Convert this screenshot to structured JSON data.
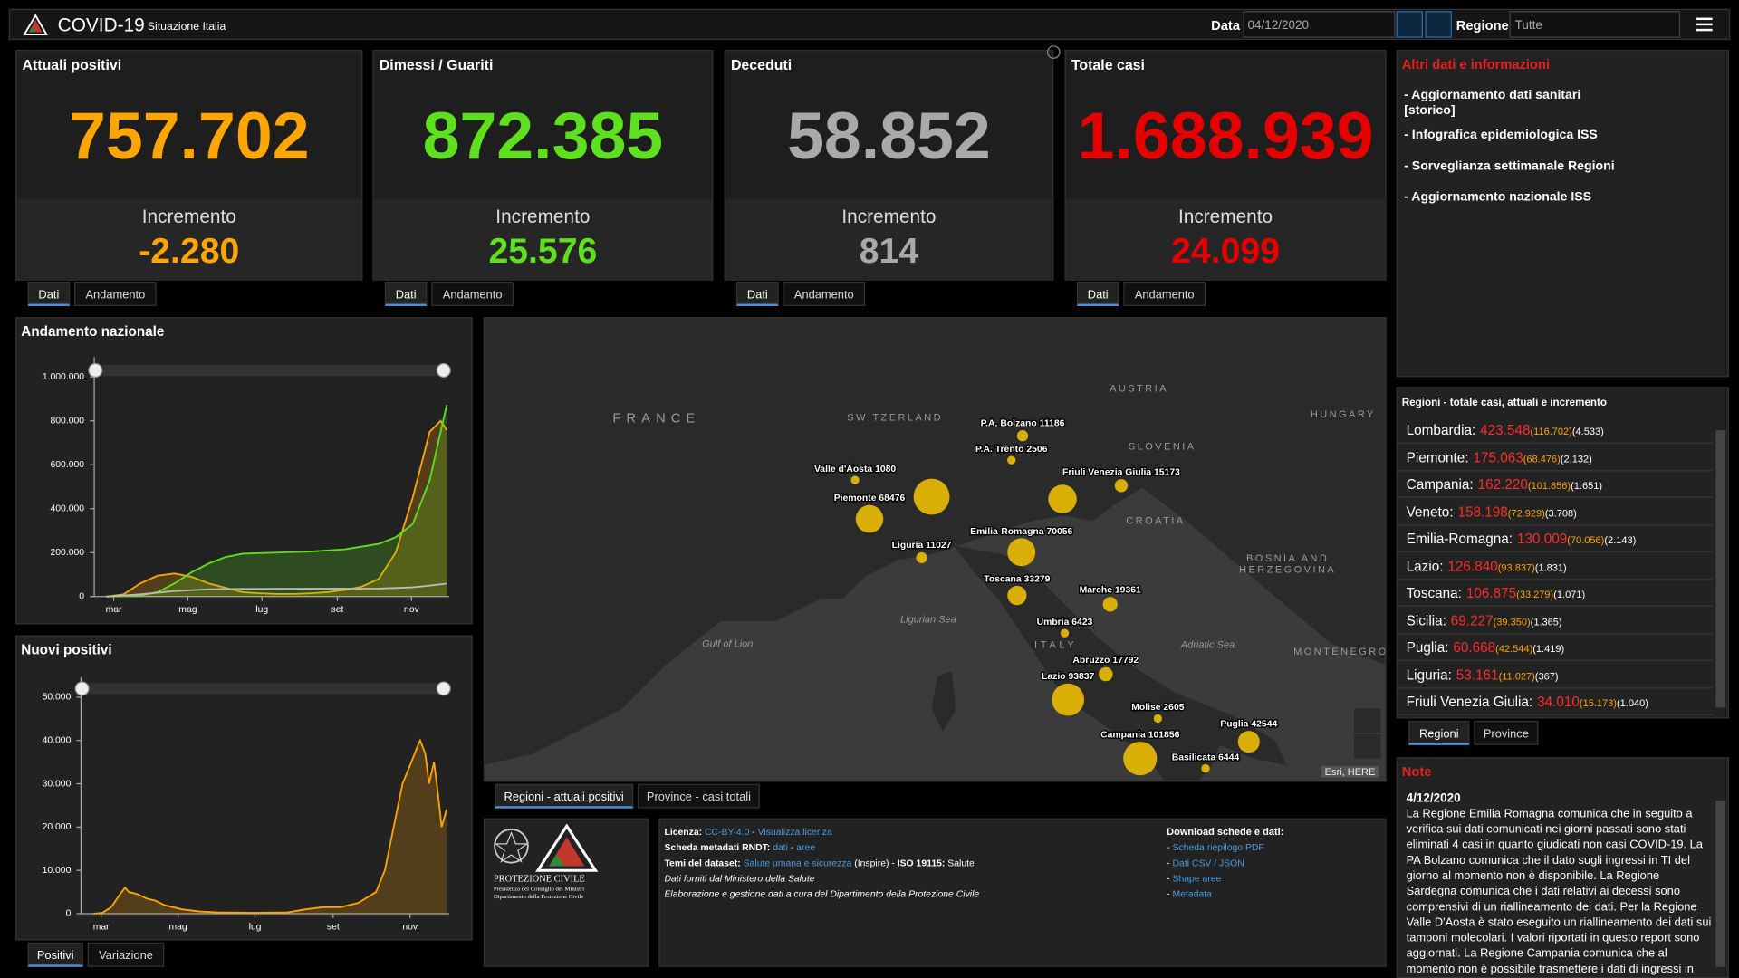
{
  "header": {
    "title": "COVID-19",
    "subtitle": "Situazione Italia",
    "date_label": "Data",
    "date": "04/12/2020",
    "region_label": "Regione",
    "region": "Tutte"
  },
  "cards": [
    {
      "title": "Attuali positivi",
      "value": "757.702",
      "increment_label": "Incremento",
      "increment": "-2.280",
      "color": "#ffa500",
      "tabs": [
        "Dati",
        "Andamento"
      ]
    },
    {
      "title": "Dimessi / Guariti",
      "value": "872.385",
      "increment_label": "Incremento",
      "increment": "25.576",
      "color": "#5fe01e",
      "tabs": [
        "Dati",
        "Andamento"
      ]
    },
    {
      "title": "Deceduti",
      "value": "58.852",
      "increment_label": "Incremento",
      "increment": "814",
      "color": "#a9a9a9",
      "tabs": [
        "Dati",
        "Andamento"
      ]
    },
    {
      "title": "Totale casi",
      "value": "1.688.939",
      "increment_label": "Incremento",
      "increment": "24.099",
      "color": "#e60000",
      "tabs": [
        "Dati",
        "Andamento"
      ]
    }
  ],
  "info": {
    "title": "Altri dati e informazioni",
    "links": [
      "- Aggiornamento dati sanitari [storico]",
      "- Infografica epidemiologica ISS",
      "- Sorveglianza settimanale Regioni",
      "- Aggiornamento nazionale ISS"
    ]
  },
  "regions": {
    "title": "Regioni - totale casi, attuali e incremento",
    "items": [
      {
        "name": "Lombardia:",
        "total": "423.548",
        "current": "(116.702)",
        "increment": "(4.533)"
      },
      {
        "name": "Piemonte:",
        "total": "175.063",
        "current": "(68.476)",
        "increment": "(2.132)"
      },
      {
        "name": "Campania:",
        "total": "162.220",
        "current": "(101.856)",
        "increment": "(1.651)"
      },
      {
        "name": "Veneto:",
        "total": "158.198",
        "current": "(72.929)",
        "increment": "(3.708)"
      },
      {
        "name": "Emilia-Romagna:",
        "total": "130.009",
        "current": "(70.056)",
        "increment": "(2.143)"
      },
      {
        "name": "Lazio:",
        "total": "126.840",
        "current": "(93.837)",
        "increment": "(1.831)"
      },
      {
        "name": "Toscana:",
        "total": "106.875",
        "current": "(33.279)",
        "increment": "(1.071)"
      },
      {
        "name": "Sicilia:",
        "total": "69.227",
        "current": "(39.350)",
        "increment": "(1.365)"
      },
      {
        "name": "Puglia:",
        "total": "60.668",
        "current": "(42.544)",
        "increment": "(1.419)"
      },
      {
        "name": "Liguria:",
        "total": "53.161",
        "current": "(11.027)",
        "increment": "(367)"
      },
      {
        "name": "Friuli Venezia Giulia:",
        "total": "34.010",
        "current": "(15.173)",
        "increment": "(1.040)"
      }
    ],
    "tabs": [
      "Regioni",
      "Province"
    ]
  },
  "notes": {
    "title": "Note",
    "date": "4/12/2020",
    "text": "La Regione Emilia Romagna comunica che in seguito a verifica sui dati comunicati nei giorni passati sono stati eliminati 4 casi in quanto giudicati non casi COVID-19. La PA Bolzano comunica che il dato sugli ingressi in TI del giorno al momento non è disponibile. La Regione Sardegna comunica che i dati relativi ai decessi sono comprensivi di un riallineamento dei dati. Per la Regione Valle D'Aosta è stato eseguito un riallineamento dei dati sui tamponi molecolari. I valori riportati in questo report sono aggiornati. La Regione Campania comunica che al momento non è possibile trasmettere i dati di ingressi in terapia intensiva del giorno."
  },
  "map": {
    "countries": [
      "FRANCE",
      "SWITZERLAND",
      "AUSTRIA",
      "HUNGARY",
      "SLOVENIA",
      "CROATIA",
      "BOSNIA AND",
      "HERZEGOVINA",
      "ITALY",
      "MONTENEGRO",
      "Ligurian Sea",
      "Gulf of Lion",
      "Adriatic Sea"
    ],
    "bubbles": [
      {
        "label": "P.A. Bolzano 11186",
        "value": 11186
      },
      {
        "label": "P.A. Trento 2506",
        "value": 2506
      },
      {
        "label": "Valle d'Aosta 1080",
        "value": 1080
      },
      {
        "label": null,
        "value": 116702
      },
      {
        "label": "Piemonte 68476",
        "value": 68476
      },
      {
        "label": "Friuli Venezia Giulia 15173",
        "value": 15173
      },
      {
        "label": null,
        "value": 72929
      },
      {
        "label": "Liguria 11027",
        "value": 11027
      },
      {
        "label": "Emilia-Romagna 70056",
        "value": 70056
      },
      {
        "label": "Toscana 33279",
        "value": 33279
      },
      {
        "label": "Marche 19361",
        "value": 19361
      },
      {
        "label": "Umbria 6423",
        "value": 6423
      },
      {
        "label": "Abruzzo 17792",
        "value": 17792
      },
      {
        "label": "Lazio 93837",
        "value": 93837
      },
      {
        "label": "Molise 2605",
        "value": 2605
      },
      {
        "label": "Puglia 42544",
        "value": 42544
      },
      {
        "label": "Campania 101856",
        "value": 101856
      },
      {
        "label": "Basilicata 6444",
        "value": 6444
      }
    ],
    "attribution": "Esri, HERE",
    "tabs": [
      "Regioni - attuali positivi",
      "Province - casi totali"
    ]
  },
  "footer": {
    "logo_lines": [
      "PROTEZIONE CIVILE",
      "Presidenza del Consiglio dei Ministri",
      "Dipartimento della Protezione Civile"
    ],
    "license_lines": [
      [
        {
          "text": "Licenza: ",
          "style": "bold"
        },
        {
          "text": "CC-BY-4.0",
          "style": "link"
        },
        {
          "text": " - ",
          "style": "plain"
        },
        {
          "text": "Visualizza licenza",
          "style": "link"
        }
      ],
      [
        {
          "text": "Scheda metadati RNDT: ",
          "style": "bold"
        },
        {
          "text": "dati",
          "style": "link"
        },
        {
          "text": " - ",
          "style": "plain"
        },
        {
          "text": "aree",
          "style": "link"
        }
      ],
      [
        {
          "text": "Temi del dataset: ",
          "style": "bold"
        },
        {
          "text": "Salute umana e sicurezza",
          "style": "link"
        },
        {
          "text": " (Inspire) - ",
          "style": "plain"
        },
        {
          "text": "ISO 19115:",
          "style": "bold"
        },
        {
          "text": " Salute",
          "style": "plain"
        }
      ],
      [
        {
          "text": "Dati forniti dal Ministero della Salute",
          "style": "italic"
        }
      ],
      [
        {
          "text": "Elaborazione e gestione dati a cura del Dipartimento della Protezione Civile",
          "style": "italic"
        }
      ]
    ],
    "download": {
      "title": "Download schede e dati:",
      "items": [
        {
          "dash": "- ",
          "text": "Scheda riepilogo PDF"
        },
        {
          "dash": "- ",
          "text": "Dati CSV / JSON"
        },
        {
          "dash": "- ",
          "text": "Shape aree"
        },
        {
          "dash": "- ",
          "text": "Metadata"
        }
      ]
    }
  },
  "chart_tabs": [
    "Positivi",
    "Variazione"
  ],
  "chart_data": [
    {
      "type": "line",
      "title": "Andamento nazionale",
      "xlim": [
        -10,
        282
      ],
      "xticks": [
        {
          "value": 6,
          "label": "mar"
        },
        {
          "value": 67,
          "label": "mag"
        },
        {
          "value": 128,
          "label": "lug"
        },
        {
          "value": 190,
          "label": "set"
        },
        {
          "value": 251,
          "label": "nov"
        }
      ],
      "ylim": [
        0,
        1060000
      ],
      "yticks": [
        0,
        {
          "value": 200000,
          "label": "200.000"
        },
        {
          "value": 400000,
          "label": "400.000"
        },
        {
          "value": 600000,
          "label": "600.000"
        },
        {
          "value": 800000,
          "label": "800.000"
        },
        {
          "value": 1000000,
          "label": "1.000.000"
        }
      ],
      "series": [
        {
          "color": "#ffa500",
          "fill": true,
          "x": [
            0,
            14,
            28,
            42,
            56,
            70,
            84,
            98,
            112,
            126,
            140,
            154,
            168,
            182,
            196,
            210,
            224,
            238,
            252,
            266,
            275,
            280
          ],
          "values": [
            0,
            10000,
            60000,
            95000,
            105000,
            90000,
            60000,
            40000,
            20000,
            15000,
            12000,
            12000,
            15000,
            20000,
            30000,
            45000,
            80000,
            200000,
            450000,
            750000,
            800000,
            757702
          ]
        },
        {
          "color": "#5fe01e",
          "fill": true,
          "x": [
            0,
            28,
            42,
            56,
            70,
            84,
            98,
            112,
            140,
            168,
            196,
            224,
            238,
            252,
            266,
            275,
            280
          ],
          "values": [
            0,
            5000,
            20000,
            60000,
            110000,
            150000,
            180000,
            195000,
            200000,
            205000,
            215000,
            240000,
            270000,
            330000,
            530000,
            750000,
            872385
          ]
        },
        {
          "color": "#bbbbbb",
          "fill": false,
          "x": [
            0,
            28,
            56,
            84,
            112,
            168,
            224,
            252,
            266,
            280
          ],
          "values": [
            0,
            10000,
            25000,
            33000,
            35000,
            36000,
            36500,
            42000,
            50000,
            58852
          ]
        }
      ]
    },
    {
      "type": "line",
      "title": "Nuovi positivi",
      "xlim": [
        -10,
        282
      ],
      "xticks": [
        {
          "value": 6,
          "label": "mar"
        },
        {
          "value": 67,
          "label": "mag"
        },
        {
          "value": 128,
          "label": "lug"
        },
        {
          "value": 190,
          "label": "set"
        },
        {
          "value": 251,
          "label": "nov"
        }
      ],
      "ylim": [
        0,
        53000
      ],
      "yticks": [
        0,
        {
          "value": 10000,
          "label": "10.000"
        },
        {
          "value": 20000,
          "label": "20.000"
        },
        {
          "value": 30000,
          "label": "30.000"
        },
        {
          "value": 40000,
          "label": "40.000"
        },
        {
          "value": 50000,
          "label": "50.000"
        }
      ],
      "series": [
        {
          "color": "#ffa500",
          "fill": true,
          "x": [
            0,
            7,
            14,
            21,
            25,
            28,
            35,
            42,
            49,
            56,
            63,
            70,
            84,
            98,
            126,
            154,
            168,
            182,
            196,
            210,
            224,
            231,
            238,
            245,
            252,
            256,
            259,
            263,
            266,
            270,
            273,
            276,
            280
          ],
          "values": [
            0,
            200,
            1500,
            4500,
            6000,
            5000,
            4500,
            3500,
            3000,
            2000,
            1500,
            1000,
            500,
            300,
            200,
            300,
            1000,
            1500,
            1500,
            2500,
            5000,
            10000,
            20000,
            30000,
            35000,
            38000,
            40000,
            37000,
            30000,
            35000,
            28000,
            20000,
            24099
          ]
        }
      ]
    }
  ]
}
